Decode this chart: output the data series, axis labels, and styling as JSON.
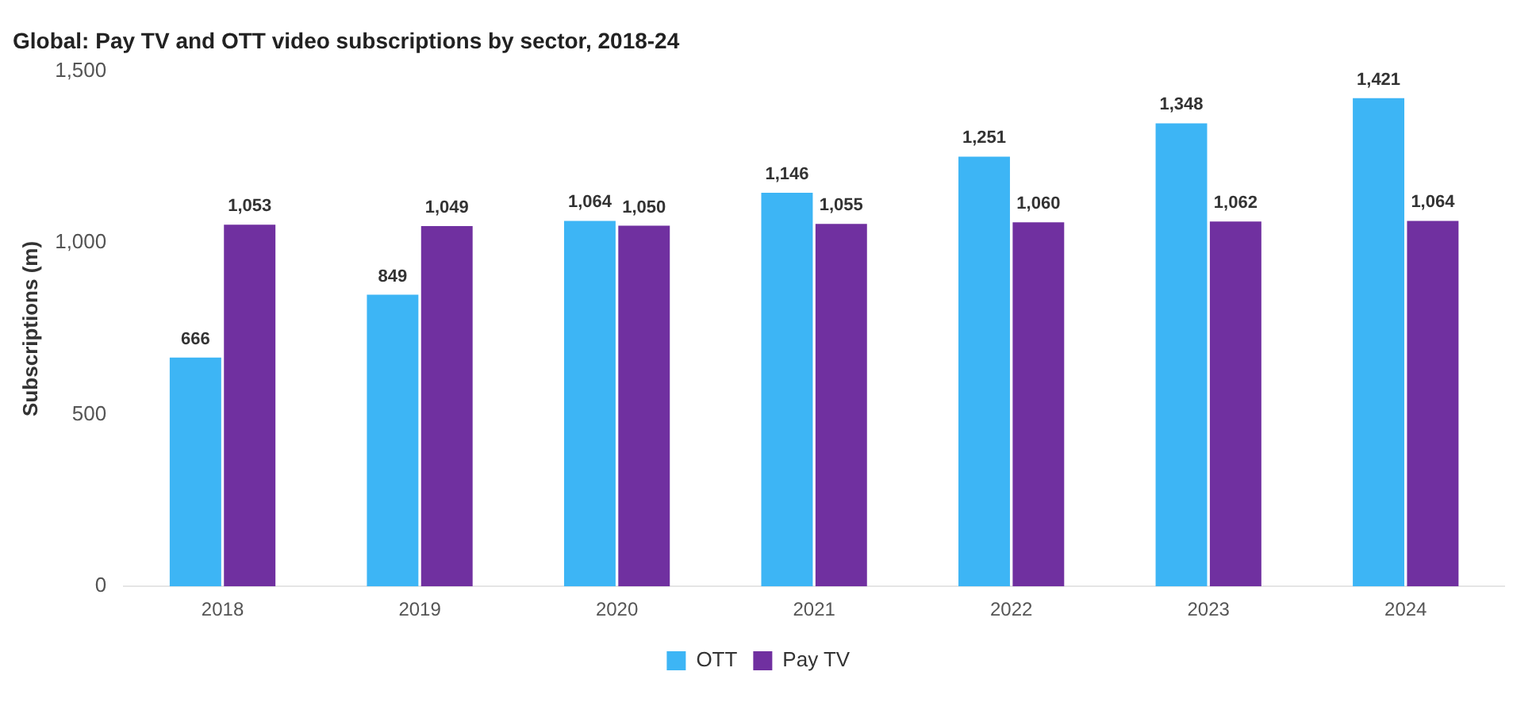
{
  "chart_data": {
    "type": "bar",
    "title": "Global: Pay TV and OTT video subscriptions by sector, 2018-24",
    "ylabel": "Subscriptions (m)",
    "categories": [
      "2018",
      "2019",
      "2020",
      "2021",
      "2022",
      "2023",
      "2024"
    ],
    "series": [
      {
        "name": "OTT",
        "color": "#3db5f5",
        "values": [
          666,
          849,
          1064,
          1146,
          1251,
          1348,
          1421
        ],
        "value_labels": [
          "666",
          "849",
          "1,064",
          "1,146",
          "1,251",
          "1,348",
          "1,421"
        ]
      },
      {
        "name": "Pay TV",
        "color": "#7030a0",
        "values": [
          1053,
          1049,
          1050,
          1055,
          1060,
          1062,
          1064
        ],
        "value_labels": [
          "1,053",
          "1,049",
          "1,050",
          "1,055",
          "1,060",
          "1,062",
          "1,064"
        ]
      }
    ],
    "ylim": [
      0,
      1500
    ],
    "yticks": [
      0,
      500,
      {
        "value": 1000,
        "label": "1,000"
      },
      {
        "value": 1500,
        "label": "1,500"
      }
    ],
    "grid": false,
    "legend": "bottom"
  }
}
